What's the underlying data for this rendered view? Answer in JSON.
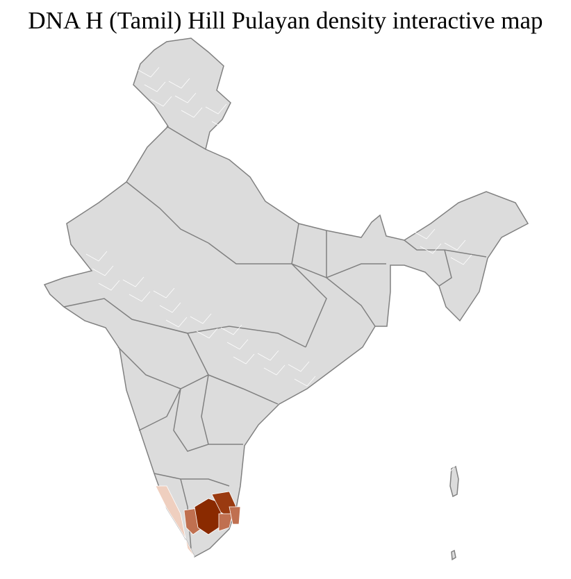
{
  "title": "DNA H (Tamil) Hill Pulayan density interactive map",
  "map": {
    "base_fill": "#dcdcdc",
    "district_border": "#ffffff",
    "state_border": "#808080",
    "highlight_colors": {
      "low": "#efcfbf",
      "medium": "#c07050",
      "high": "#9a3a10",
      "highest": "#8a2a00"
    },
    "highlighted_regions": [
      "Kerala",
      "Tamil Nadu"
    ]
  }
}
